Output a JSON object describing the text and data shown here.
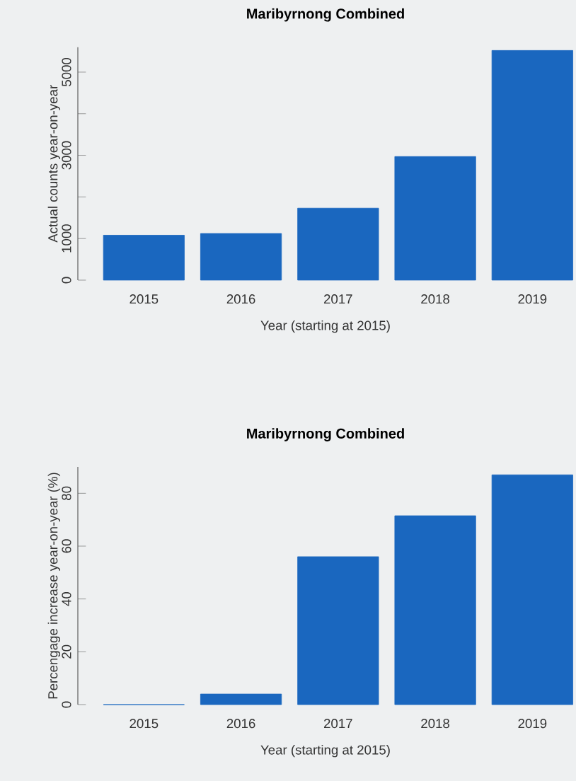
{
  "chart_data": [
    {
      "type": "bar",
      "title": "Maribyrnong Combined",
      "xlabel": "Year (starting at 2015)",
      "ylabel": "Actual counts year-on-year",
      "categories": [
        "2015",
        "2016",
        "2017",
        "2018",
        "2019"
      ],
      "values": [
        1080,
        1120,
        1730,
        2970,
        5520
      ],
      "color": "#1a67bf",
      "ylim": [
        0,
        5600
      ],
      "yticks": [
        0,
        1000,
        {
          "value": 2000,
          "label": null
        },
        3000,
        {
          "value": 4000,
          "label": null
        },
        5000
      ]
    },
    {
      "type": "bar",
      "title": "Maribyrnong Combined",
      "xlabel": "Year (starting at 2015)",
      "ylabel": "Percengage increase year-on-year (%)",
      "categories": [
        "2015",
        "2016",
        "2017",
        "2018",
        "2019"
      ],
      "values": [
        0,
        4,
        56,
        71.5,
        87
      ],
      "color": "#1a67bf",
      "ylim": [
        0,
        90
      ],
      "yticks": [
        0,
        20,
        40,
        60,
        80
      ]
    }
  ]
}
